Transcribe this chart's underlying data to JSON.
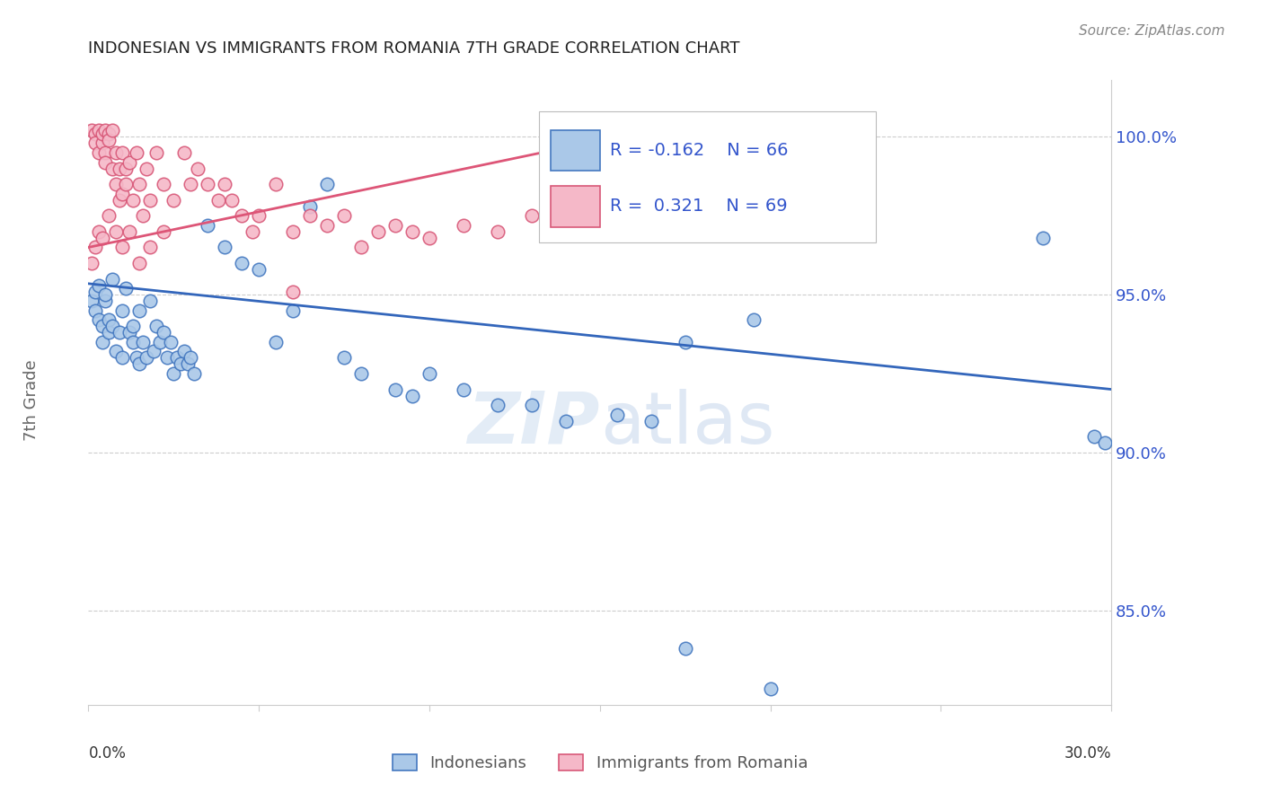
{
  "title": "INDONESIAN VS IMMIGRANTS FROM ROMANIA 7TH GRADE CORRELATION CHART",
  "source": "Source: ZipAtlas.com",
  "ylabel": "7th Grade",
  "xlim": [
    0.0,
    0.3
  ],
  "ylim": [
    82.0,
    101.8
  ],
  "watermark_zip": "ZIP",
  "watermark_atlas": "atlas",
  "legend_r_blue": "-0.162",
  "legend_n_blue": "66",
  "legend_r_pink": "0.321",
  "legend_n_pink": "69",
  "blue_color": "#aac8e8",
  "pink_color": "#f5b8c8",
  "blue_edge_color": "#4478c0",
  "pink_edge_color": "#d85878",
  "blue_line_color": "#3366bb",
  "pink_line_color": "#dd5577",
  "indonesian_label": "Indonesians",
  "romania_label": "Immigrants from Romania",
  "blue_scatter": [
    [
      0.001,
      94.8
    ],
    [
      0.002,
      95.1
    ],
    [
      0.002,
      94.5
    ],
    [
      0.003,
      94.2
    ],
    [
      0.003,
      95.3
    ],
    [
      0.004,
      94.0
    ],
    [
      0.004,
      93.5
    ],
    [
      0.005,
      94.8
    ],
    [
      0.005,
      95.0
    ],
    [
      0.006,
      93.8
    ],
    [
      0.006,
      94.2
    ],
    [
      0.007,
      95.5
    ],
    [
      0.007,
      94.0
    ],
    [
      0.008,
      93.2
    ],
    [
      0.009,
      93.8
    ],
    [
      0.01,
      94.5
    ],
    [
      0.01,
      93.0
    ],
    [
      0.011,
      95.2
    ],
    [
      0.012,
      93.8
    ],
    [
      0.013,
      94.0
    ],
    [
      0.013,
      93.5
    ],
    [
      0.014,
      93.0
    ],
    [
      0.015,
      92.8
    ],
    [
      0.015,
      94.5
    ],
    [
      0.016,
      93.5
    ],
    [
      0.017,
      93.0
    ],
    [
      0.018,
      94.8
    ],
    [
      0.019,
      93.2
    ],
    [
      0.02,
      94.0
    ],
    [
      0.021,
      93.5
    ],
    [
      0.022,
      93.8
    ],
    [
      0.023,
      93.0
    ],
    [
      0.024,
      93.5
    ],
    [
      0.025,
      92.5
    ],
    [
      0.026,
      93.0
    ],
    [
      0.027,
      92.8
    ],
    [
      0.028,
      93.2
    ],
    [
      0.029,
      92.8
    ],
    [
      0.03,
      93.0
    ],
    [
      0.031,
      92.5
    ],
    [
      0.035,
      97.2
    ],
    [
      0.04,
      96.5
    ],
    [
      0.045,
      96.0
    ],
    [
      0.05,
      95.8
    ],
    [
      0.055,
      93.5
    ],
    [
      0.06,
      94.5
    ],
    [
      0.065,
      97.8
    ],
    [
      0.07,
      98.5
    ],
    [
      0.075,
      93.0
    ],
    [
      0.08,
      92.5
    ],
    [
      0.09,
      92.0
    ],
    [
      0.095,
      91.8
    ],
    [
      0.1,
      92.5
    ],
    [
      0.11,
      92.0
    ],
    [
      0.12,
      91.5
    ],
    [
      0.13,
      91.5
    ],
    [
      0.14,
      91.0
    ],
    [
      0.155,
      91.2
    ],
    [
      0.165,
      91.0
    ],
    [
      0.175,
      93.5
    ],
    [
      0.195,
      94.2
    ],
    [
      0.28,
      96.8
    ],
    [
      0.295,
      90.5
    ],
    [
      0.298,
      90.3
    ],
    [
      0.175,
      83.8
    ],
    [
      0.2,
      82.5
    ]
  ],
  "pink_scatter": [
    [
      0.001,
      100.2
    ],
    [
      0.002,
      100.1
    ],
    [
      0.002,
      99.8
    ],
    [
      0.003,
      100.2
    ],
    [
      0.003,
      99.5
    ],
    [
      0.004,
      99.8
    ],
    [
      0.004,
      100.1
    ],
    [
      0.005,
      99.5
    ],
    [
      0.005,
      100.2
    ],
    [
      0.005,
      99.2
    ],
    [
      0.006,
      100.1
    ],
    [
      0.006,
      99.9
    ],
    [
      0.007,
      100.2
    ],
    [
      0.007,
      99.0
    ],
    [
      0.008,
      99.5
    ],
    [
      0.008,
      98.5
    ],
    [
      0.009,
      99.0
    ],
    [
      0.009,
      98.0
    ],
    [
      0.01,
      99.5
    ],
    [
      0.01,
      98.2
    ],
    [
      0.011,
      99.0
    ],
    [
      0.011,
      98.5
    ],
    [
      0.012,
      99.2
    ],
    [
      0.013,
      98.0
    ],
    [
      0.014,
      99.5
    ],
    [
      0.015,
      98.5
    ],
    [
      0.016,
      97.5
    ],
    [
      0.017,
      99.0
    ],
    [
      0.018,
      98.0
    ],
    [
      0.02,
      99.5
    ],
    [
      0.022,
      98.5
    ],
    [
      0.025,
      98.0
    ],
    [
      0.028,
      99.5
    ],
    [
      0.03,
      98.5
    ],
    [
      0.032,
      99.0
    ],
    [
      0.035,
      98.5
    ],
    [
      0.038,
      98.0
    ],
    [
      0.04,
      98.5
    ],
    [
      0.042,
      98.0
    ],
    [
      0.045,
      97.5
    ],
    [
      0.048,
      97.0
    ],
    [
      0.05,
      97.5
    ],
    [
      0.055,
      98.5
    ],
    [
      0.06,
      97.0
    ],
    [
      0.065,
      97.5
    ],
    [
      0.07,
      97.2
    ],
    [
      0.075,
      97.5
    ],
    [
      0.08,
      96.5
    ],
    [
      0.085,
      97.0
    ],
    [
      0.09,
      97.2
    ],
    [
      0.095,
      97.0
    ],
    [
      0.1,
      96.8
    ],
    [
      0.11,
      97.2
    ],
    [
      0.12,
      97.0
    ],
    [
      0.13,
      97.5
    ],
    [
      0.14,
      97.0
    ],
    [
      0.15,
      97.2
    ],
    [
      0.003,
      97.0
    ],
    [
      0.06,
      95.1
    ],
    [
      0.001,
      96.0
    ],
    [
      0.002,
      96.5
    ],
    [
      0.004,
      96.8
    ],
    [
      0.006,
      97.5
    ],
    [
      0.008,
      97.0
    ],
    [
      0.01,
      96.5
    ],
    [
      0.012,
      97.0
    ],
    [
      0.015,
      96.0
    ],
    [
      0.018,
      96.5
    ],
    [
      0.022,
      97.0
    ]
  ],
  "blue_trend_x": [
    0.0,
    0.3
  ],
  "blue_trend_y": [
    95.35,
    92.0
  ],
  "pink_trend_x": [
    0.0,
    0.155
  ],
  "pink_trend_y": [
    96.5,
    100.0
  ],
  "ytick_vals": [
    85.0,
    90.0,
    95.0,
    100.0
  ],
  "ytick_labels": [
    "85.0%",
    "90.0%",
    "95.0%",
    "100.0%"
  ],
  "xtick_vals": [
    0.0,
    0.05,
    0.1,
    0.15,
    0.2,
    0.25,
    0.3
  ],
  "grid_color": "#cccccc",
  "title_color": "#222222",
  "source_color": "#888888",
  "yticklabel_color": "#3355cc",
  "ylabel_color": "#666666",
  "xticklabel_color": "#333333"
}
